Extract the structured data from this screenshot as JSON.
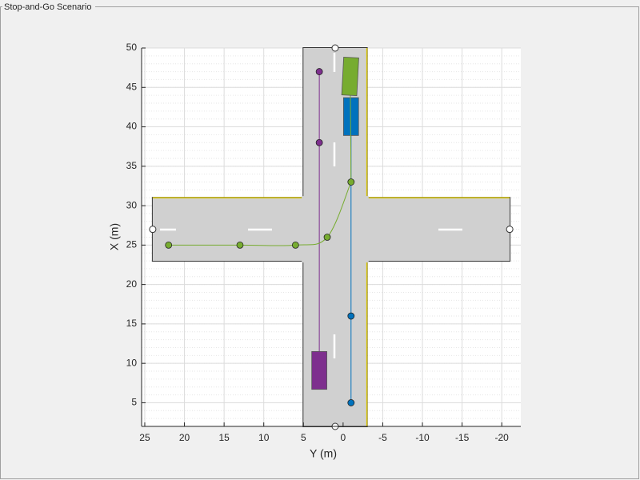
{
  "chart_data": {
    "type": "scenario",
    "title": "Stop-and-Go Scenario",
    "xlabel": "Y (m)",
    "ylabel": "X (m)",
    "xlim": [
      25.4,
      -22.4
    ],
    "ylim": [
      2,
      50
    ],
    "xticks": [
      25,
      20,
      15,
      10,
      5,
      0,
      -5,
      -10,
      -15,
      -20
    ],
    "yticks": [
      5,
      10,
      15,
      20,
      25,
      30,
      35,
      40,
      45,
      50
    ],
    "grid": true,
    "minor_grid": true,
    "roads": [
      {
        "x": [
          1,
          1
        ],
        "y": [
          2,
          50
        ],
        "width": 8
      },
      {
        "x": [
          24,
          -21
        ],
        "y": [
          27,
          27
        ],
        "width": 8
      }
    ],
    "actors": [
      {
        "color": "#7e2f8e",
        "vehicle": {
          "x": 3,
          "y": 9.1,
          "length": 4.8,
          "width": 1.9,
          "yaw": 0
        },
        "x": [
          3,
          3
        ],
        "y": [
          38,
          47
        ]
      },
      {
        "color": "#0072bd",
        "vehicle": {
          "x": -1,
          "y": 41.3,
          "length": 4.8,
          "width": 1.9,
          "yaw": 0
        },
        "x": [
          -1,
          -1
        ],
        "y": [
          5,
          16
        ]
      },
      {
        "color": "#77ac30",
        "vehicle": {
          "x": -0.9,
          "y": 46.4,
          "length": 4.8,
          "width": 1.9,
          "yaw": 3
        },
        "x": [
          22,
          13,
          6,
          2,
          -1
        ],
        "y": [
          25,
          25,
          25,
          26,
          33
        ]
      }
    ]
  }
}
